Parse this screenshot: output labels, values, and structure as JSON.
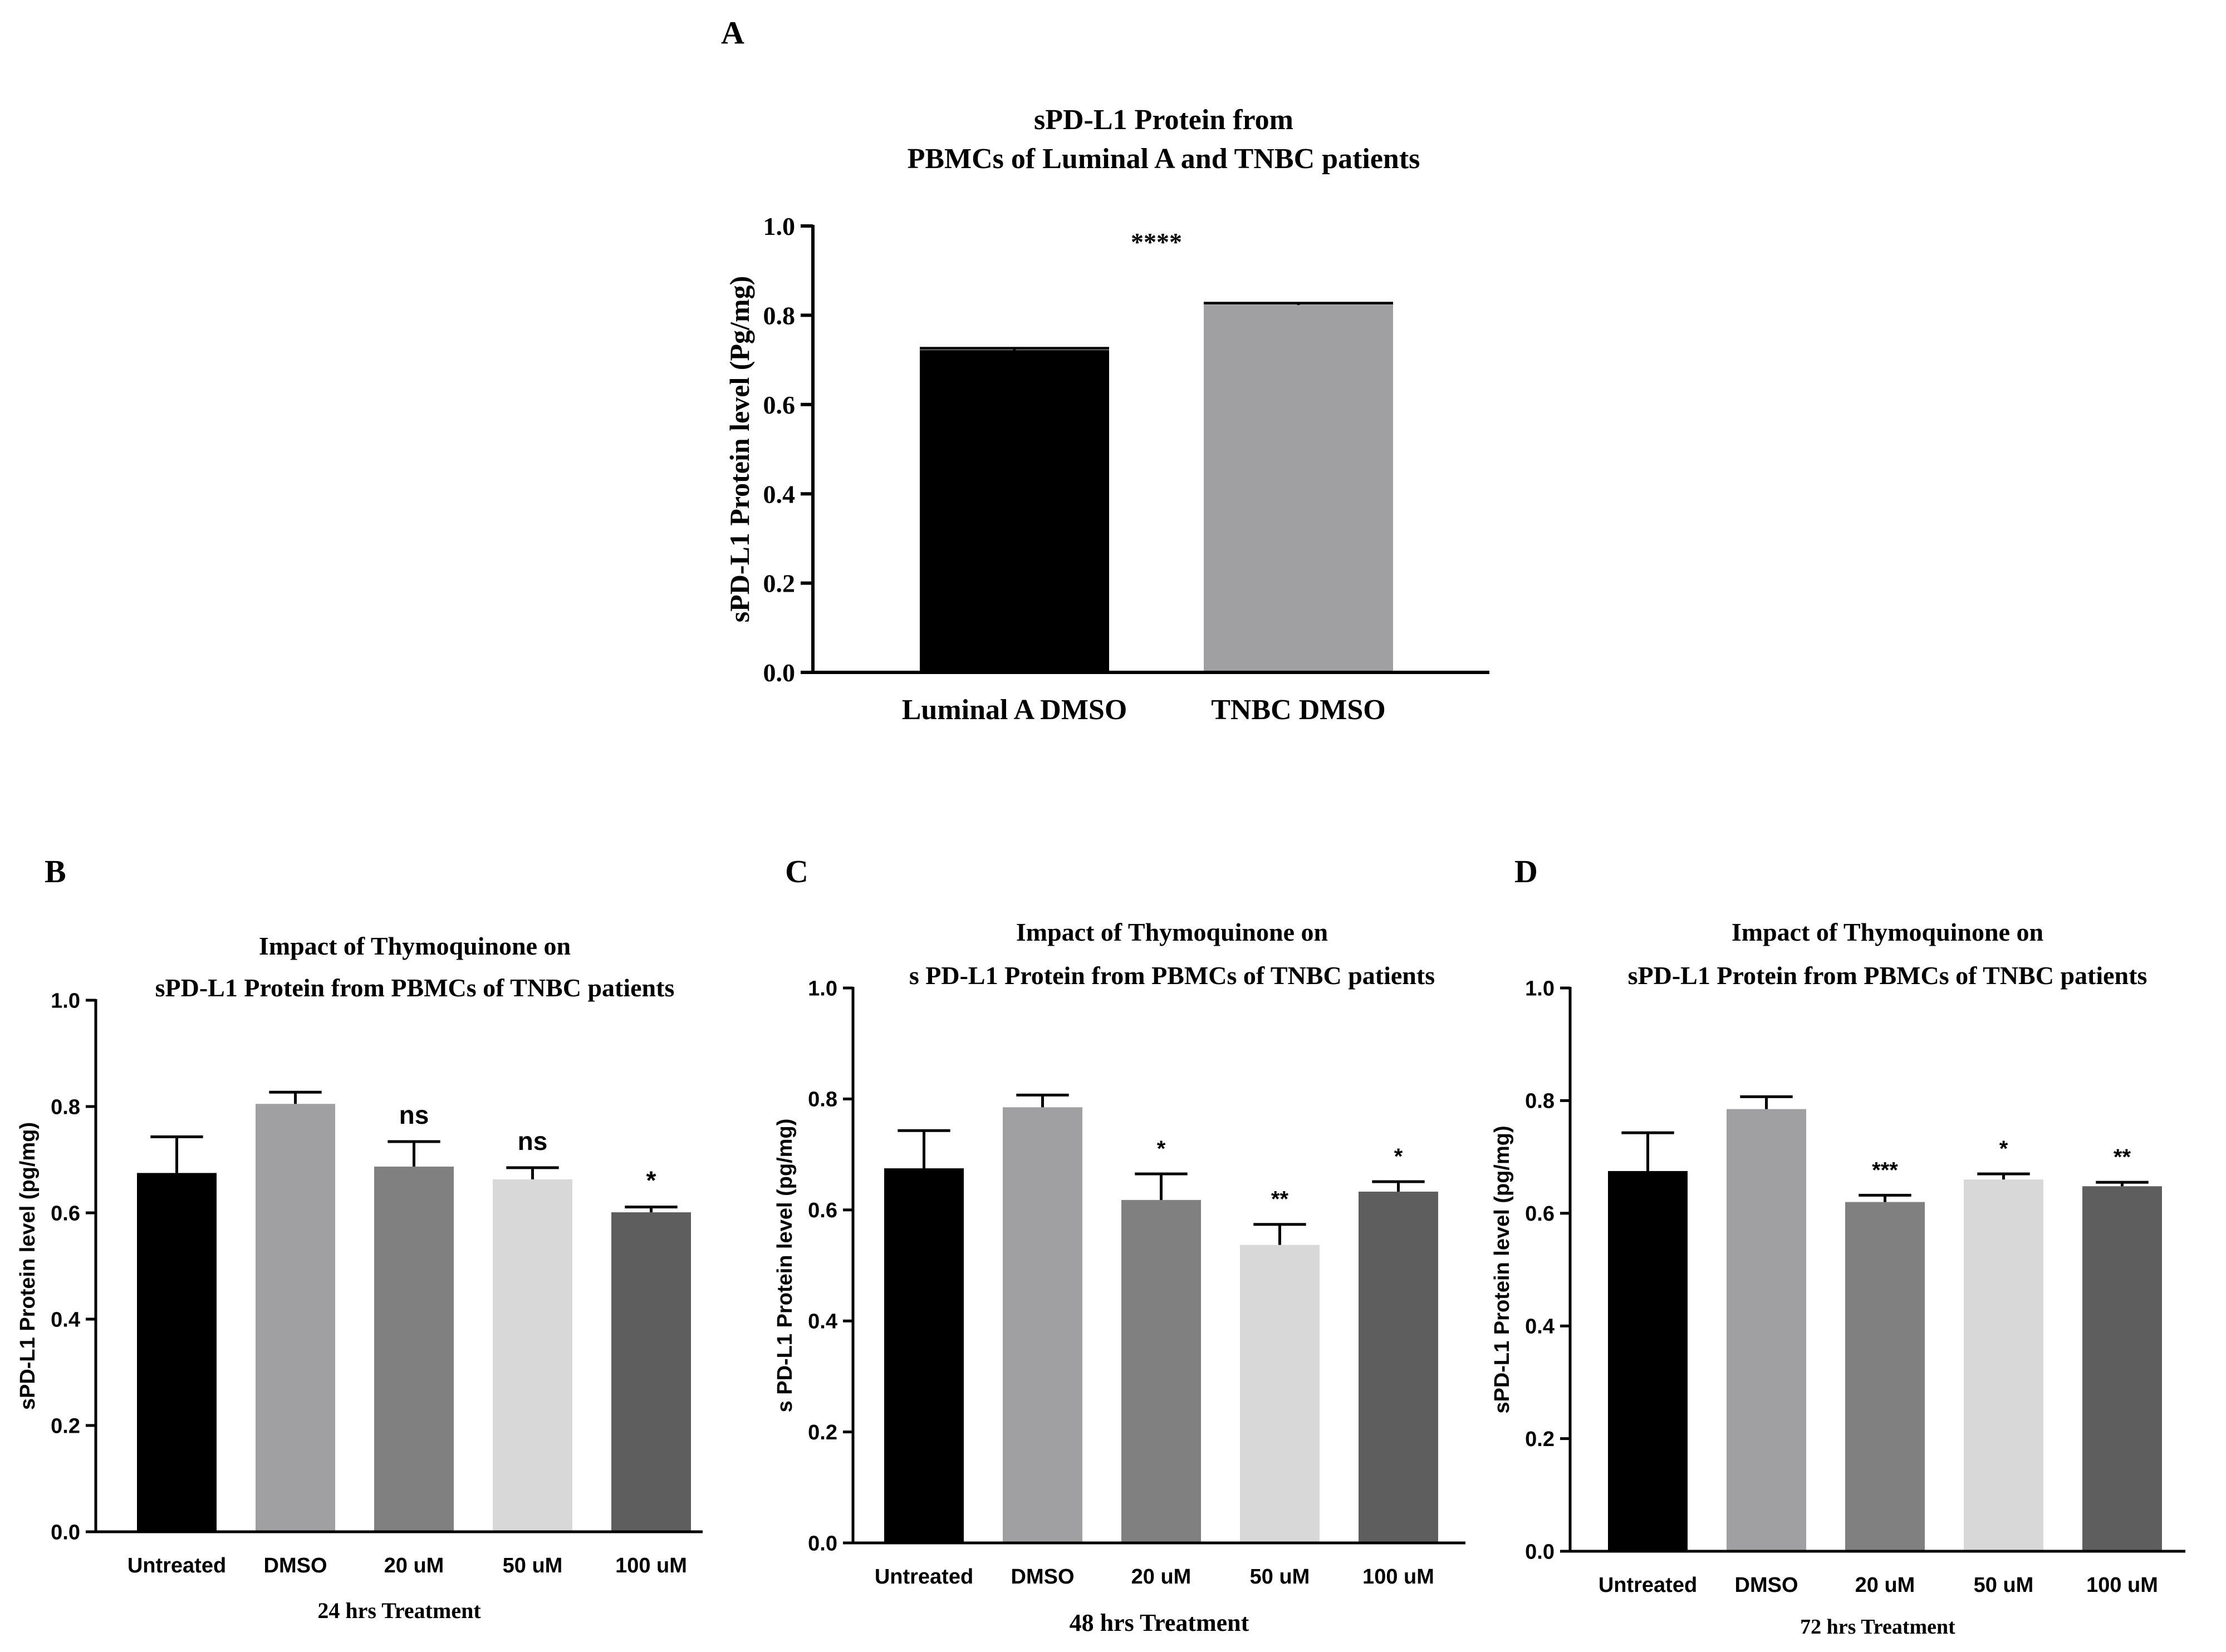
{
  "panel_labels": [
    "A",
    "B",
    "C",
    "D"
  ],
  "chart_data": [
    {
      "id": "A",
      "type": "bar",
      "title": [
        "sPD-L1 Protein from",
        "PBMCs of Luminal A and TNBC patients"
      ],
      "xlabel": "",
      "ylabel": "sPD-L1 Protein level (Pg/mg)",
      "ylim": [
        0,
        1.0
      ],
      "yticks": [
        "0.0",
        "0.2",
        "0.4",
        "0.6",
        "0.8",
        "1.0"
      ],
      "categories": [
        "Luminal A DMSO",
        "TNBC DMSO"
      ],
      "values": [
        0.722,
        0.823
      ],
      "errors": [
        0.004,
        0.004
      ],
      "colors": [
        "#000000",
        "#a0a0a3"
      ],
      "annotations": [
        {
          "text": "****",
          "between": [
            0,
            1
          ],
          "y": 0.945
        }
      ]
    },
    {
      "id": "B",
      "type": "bar",
      "title": [
        "Impact of Thymoquinone on",
        "sPD-L1 Protein from PBMCs  of TNBC patients"
      ],
      "xlabel": "24 hrs Treatment",
      "ylabel": "sPD-L1 Protein level (pg/mg)",
      "ylim": [
        0,
        1.0
      ],
      "yticks": [
        "0.0",
        "0.2",
        "0.4",
        "0.6",
        "0.8",
        "1.0"
      ],
      "categories": [
        "Untreated",
        "DMSO",
        "20 uM",
        "50 uM",
        "100 uM"
      ],
      "values": [
        0.675,
        0.805,
        0.687,
        0.663,
        0.601
      ],
      "errors": [
        0.068,
        0.022,
        0.047,
        0.022,
        0.01
      ],
      "colors": [
        "#000000",
        "#a0a0a3",
        "#808080",
        "#d8d8d8",
        "#5e5e5e"
      ],
      "significance": [
        "",
        "",
        "ns",
        "ns",
        "*"
      ]
    },
    {
      "id": "C",
      "type": "bar",
      "title": [
        "Impact of Thymoquinone on",
        "s PD-L1 Protein from PBMCs  of TNBC patients"
      ],
      "xlabel": "48 hrs Treatment",
      "ylabel": "s PD-L1 Protein level (pg/mg)",
      "ylim": [
        0,
        1.0
      ],
      "yticks": [
        "0.0",
        "0.2",
        "0.4",
        "0.6",
        "0.8",
        "1.0"
      ],
      "categories": [
        "Untreated",
        "DMSO",
        "20 uM",
        "50 uM",
        "100 uM"
      ],
      "values": [
        0.675,
        0.785,
        0.618,
        0.537,
        0.633
      ],
      "errors": [
        0.068,
        0.022,
        0.047,
        0.037,
        0.018
      ],
      "colors": [
        "#000000",
        "#a0a0a3",
        "#808080",
        "#d8d8d8",
        "#5e5e5e"
      ],
      "significance": [
        "",
        "",
        "*",
        "**",
        "*"
      ]
    },
    {
      "id": "D",
      "type": "bar",
      "title": [
        "Impact of Thymoquinone on",
        "sPD-L1 Protein from PBMCs  of TNBC patients"
      ],
      "xlabel": "72 hrs Treatment",
      "ylabel": "sPD-L1 Protein level (pg/mg)",
      "ylim": [
        0,
        1.0
      ],
      "yticks": [
        "0.0",
        "0.2",
        "0.4",
        "0.6",
        "0.8",
        "1.0"
      ],
      "categories": [
        "Untreated",
        "DMSO",
        "20 uM",
        "50 uM",
        "100 uM"
      ],
      "values": [
        0.675,
        0.785,
        0.62,
        0.66,
        0.648
      ],
      "errors": [
        0.068,
        0.022,
        0.012,
        0.01,
        0.007
      ],
      "colors": [
        "#000000",
        "#a0a0a3",
        "#808080",
        "#d8d8d8",
        "#5e5e5e"
      ],
      "significance": [
        "",
        "",
        "***",
        "*",
        "**"
      ]
    }
  ]
}
